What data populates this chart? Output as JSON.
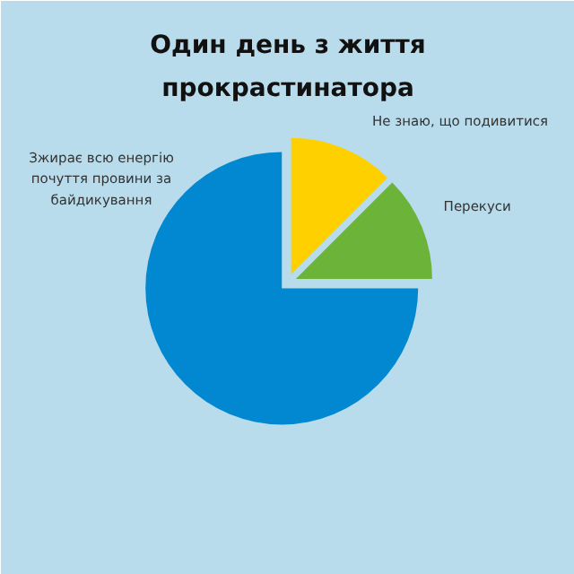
{
  "chart_data": {
    "type": "pie",
    "title": "Один день з життя прокрастинатора",
    "categories": [
      "Не знаю, що подивитися",
      "Перекуси",
      "Зжирає всю енергію почуття провини за байдикування"
    ],
    "values": [
      12.5,
      12.5,
      75
    ],
    "colors": [
      "#ffd000",
      "#6cb33a",
      "#0288d1"
    ]
  }
}
